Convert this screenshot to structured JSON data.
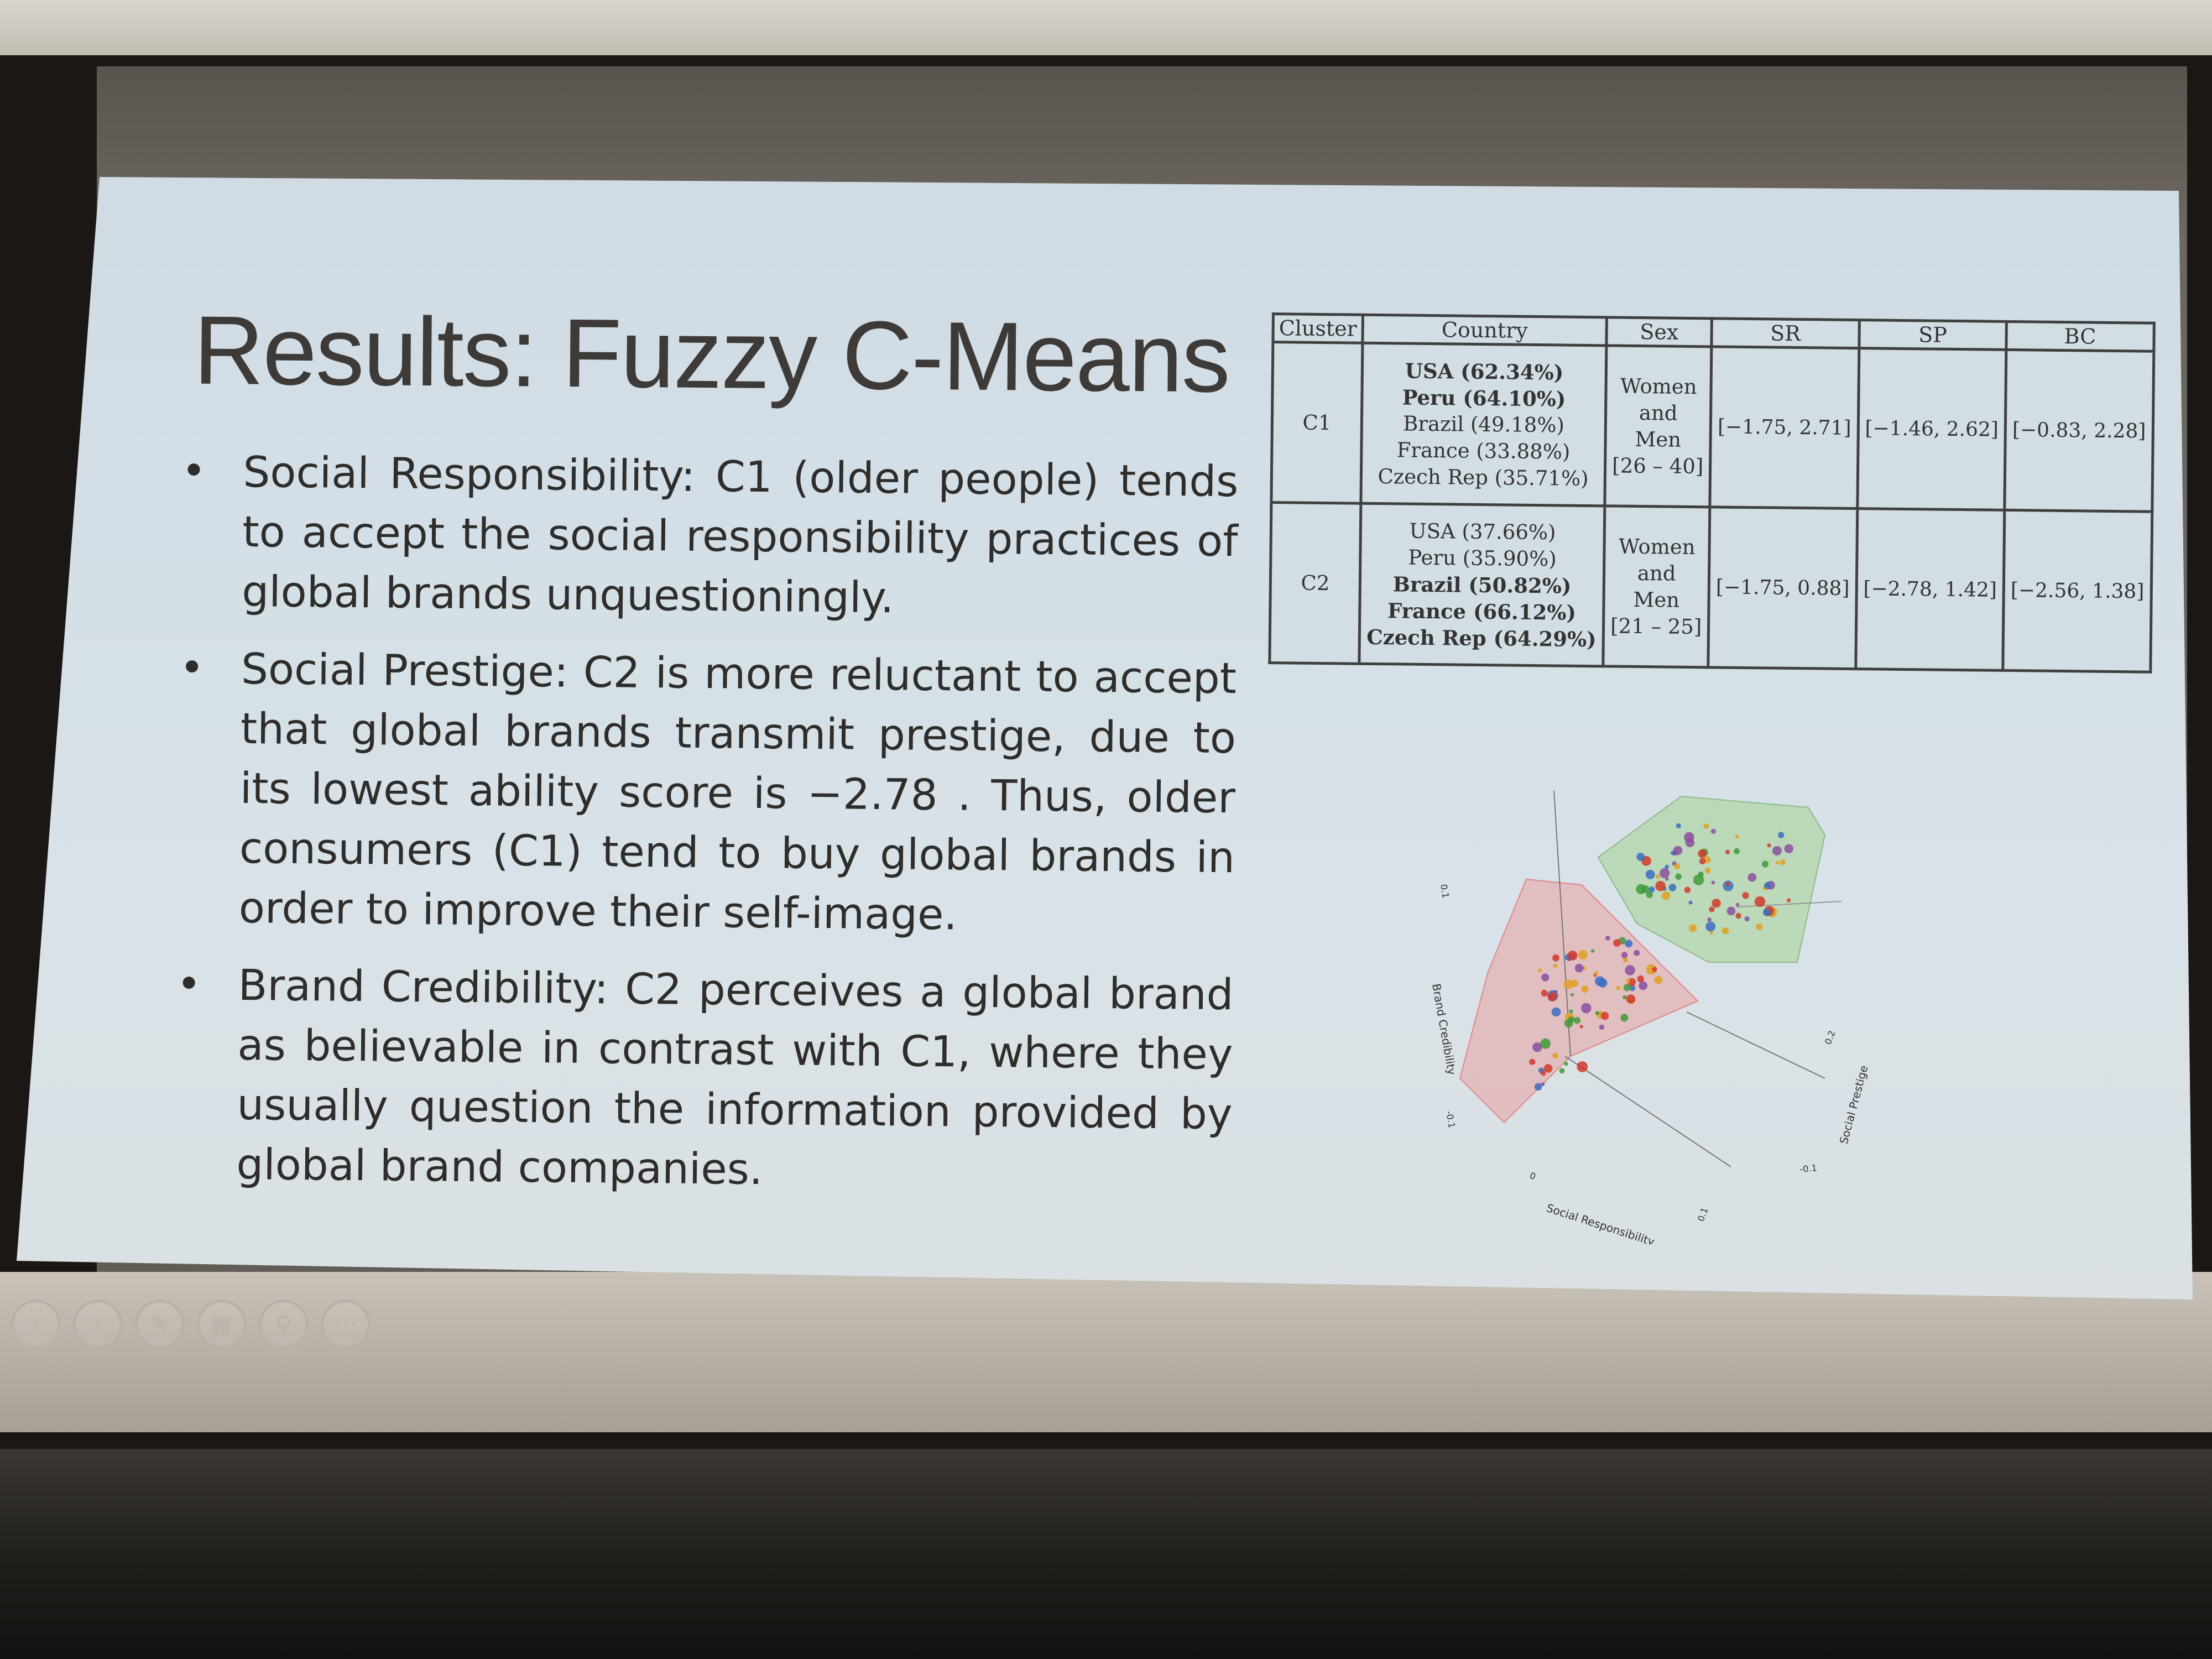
{
  "slide": {
    "title": "Results: Fuzzy C-Means",
    "bullets": [
      "Social Responsibility: C1 (older people)  tends to accept the social responsibility practices of global brands unquestioningly.",
      "Social Prestige: C2 is more reluctant to accept that global brands transmit prestige, due to its lowest ability score is −2.78 . Thus, older consumers (C1) tend to buy global brands in order to improve their self-image.",
      "Brand Credibility: C2 perceives a global brand as believable in contrast with C1, where they usually question the information provided by global brand companies."
    ]
  },
  "table": {
    "headers": [
      "Cluster",
      "Country",
      "Sex",
      "SR",
      "SP",
      "BC"
    ],
    "rows": [
      {
        "cluster": "C1",
        "countries": [
          {
            "text": "USA (62.34%)",
            "bold": true
          },
          {
            "text": "Peru (64.10%)",
            "bold": true
          },
          {
            "text": "Brazil (49.18%)",
            "bold": false
          },
          {
            "text": "France (33.88%)",
            "bold": false
          },
          {
            "text": "Czech Rep (35.71%)",
            "bold": false
          }
        ],
        "sex": [
          "Women",
          "and",
          "Men",
          "[26 – 40]"
        ],
        "sr": "[−1.75, 2.71]",
        "sp": "[−1.46, 2.62]",
        "bc": "[−0.83, 2.28]"
      },
      {
        "cluster": "C2",
        "countries": [
          {
            "text": "USA (37.66%)",
            "bold": false
          },
          {
            "text": "Peru (35.90%)",
            "bold": false
          },
          {
            "text": "Brazil (50.82%)",
            "bold": true
          },
          {
            "text": "France (66.12%)",
            "bold": true
          },
          {
            "text": "Czech Rep (64.29%)",
            "bold": true
          }
        ],
        "sex": [
          "Women",
          "and",
          "Men",
          "[21 – 25]"
        ],
        "sr": "[−1.75, 0.88]",
        "sp": "[−2.78, 1.42]",
        "bc": "[−2.56, 1.38]"
      }
    ]
  },
  "plot": {
    "axis_labels": {
      "x": "Social Responsibility",
      "y": "Social Prestige",
      "z": "Brand Credibility"
    },
    "tick_labels": [
      "0.1",
      "-0.1",
      "0",
      "0.2",
      "-0.1",
      "0.1"
    ],
    "cluster_colors": {
      "c1": "#e8a0a0",
      "c2": "#a8d49a"
    },
    "point_colors": [
      "#d23a2a",
      "#e0a020",
      "#3f9a3a",
      "#8a4fa0",
      "#3a6fc0"
    ]
  },
  "toolbar": {
    "buttons": [
      {
        "name": "previous-slide-button",
        "glyph": "‹"
      },
      {
        "name": "next-slide-button",
        "glyph": "›"
      },
      {
        "name": "pen-tool-button",
        "glyph": "✎"
      },
      {
        "name": "slide-overview-button",
        "glyph": "▦"
      },
      {
        "name": "zoom-button",
        "glyph": "⚲"
      },
      {
        "name": "more-options-button",
        "glyph": "⋯"
      }
    ]
  }
}
